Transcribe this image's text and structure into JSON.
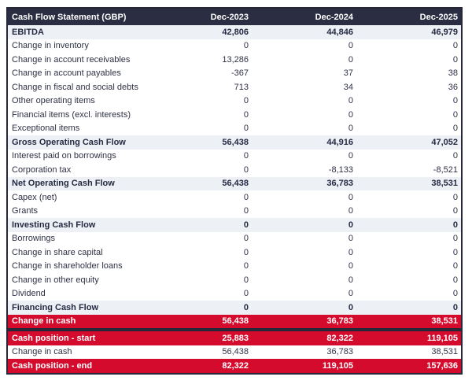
{
  "table": {
    "title": "Cash Flow Statement (GBP)",
    "columns": [
      "Dec-2023",
      "Dec-2024",
      "Dec-2025"
    ],
    "rows": [
      {
        "label": "EBITDA",
        "values": [
          "42,806",
          "44,846",
          "46,979"
        ],
        "style": "subtotal"
      },
      {
        "label": "Change in inventory",
        "values": [
          "0",
          "0",
          "0"
        ],
        "style": "normal"
      },
      {
        "label": "Change in account receivables",
        "values": [
          "13,286",
          "0",
          "0"
        ],
        "style": "normal"
      },
      {
        "label": "Change in account payables",
        "values": [
          "-367",
          "37",
          "38"
        ],
        "style": "normal"
      },
      {
        "label": "Change in fiscal and social debts",
        "values": [
          "713",
          "34",
          "36"
        ],
        "style": "normal"
      },
      {
        "label": "Other operating items",
        "values": [
          "0",
          "0",
          "0"
        ],
        "style": "normal"
      },
      {
        "label": "Financial items (excl. interests)",
        "values": [
          "0",
          "0",
          "0"
        ],
        "style": "normal"
      },
      {
        "label": "Exceptional items",
        "values": [
          "0",
          "0",
          "0"
        ],
        "style": "normal"
      },
      {
        "label": "Gross Operating Cash Flow",
        "values": [
          "56,438",
          "44,916",
          "47,052"
        ],
        "style": "subtotal"
      },
      {
        "label": "Interest paid on borrowings",
        "values": [
          "0",
          "0",
          "0"
        ],
        "style": "normal"
      },
      {
        "label": "Corporation tax",
        "values": [
          "0",
          "-8,133",
          "-8,521"
        ],
        "style": "normal"
      },
      {
        "label": "Net Operating Cash Flow",
        "values": [
          "56,438",
          "36,783",
          "38,531"
        ],
        "style": "subtotal"
      },
      {
        "label": "Capex (net)",
        "values": [
          "0",
          "0",
          "0"
        ],
        "style": "normal"
      },
      {
        "label": "Grants",
        "values": [
          "0",
          "0",
          "0"
        ],
        "style": "normal"
      },
      {
        "label": "Investing Cash Flow",
        "values": [
          "0",
          "0",
          "0"
        ],
        "style": "subtotal"
      },
      {
        "label": "Borrowings",
        "values": [
          "0",
          "0",
          "0"
        ],
        "style": "normal"
      },
      {
        "label": "Change in share capital",
        "values": [
          "0",
          "0",
          "0"
        ],
        "style": "normal"
      },
      {
        "label": "Change in shareholder loans",
        "values": [
          "0",
          "0",
          "0"
        ],
        "style": "normal"
      },
      {
        "label": "Change in other equity",
        "values": [
          "0",
          "0",
          "0"
        ],
        "style": "normal"
      },
      {
        "label": "Dividend",
        "values": [
          "0",
          "0",
          "0"
        ],
        "style": "normal"
      },
      {
        "label": "Financing Cash Flow",
        "values": [
          "0",
          "0",
          "0"
        ],
        "style": "subtotal"
      },
      {
        "label": "Change in cash",
        "values": [
          "56,438",
          "36,783",
          "38,531"
        ],
        "style": "red"
      }
    ],
    "cash_block": [
      {
        "label": "Cash position - start",
        "values": [
          "25,883",
          "82,322",
          "119,105"
        ],
        "style": "red"
      },
      {
        "label": "Change in cash",
        "values": [
          "56,438",
          "36,783",
          "38,531"
        ],
        "style": "normal"
      },
      {
        "label": "Cash position - end",
        "values": [
          "82,322",
          "119,105",
          "157,636"
        ],
        "style": "red"
      }
    ]
  },
  "colors": {
    "header_bg": "#2b2d42",
    "subtotal_bg": "#edf1f6",
    "highlight_red": "#d50b2d",
    "body_text": "#2e3145",
    "border": "#262839"
  }
}
